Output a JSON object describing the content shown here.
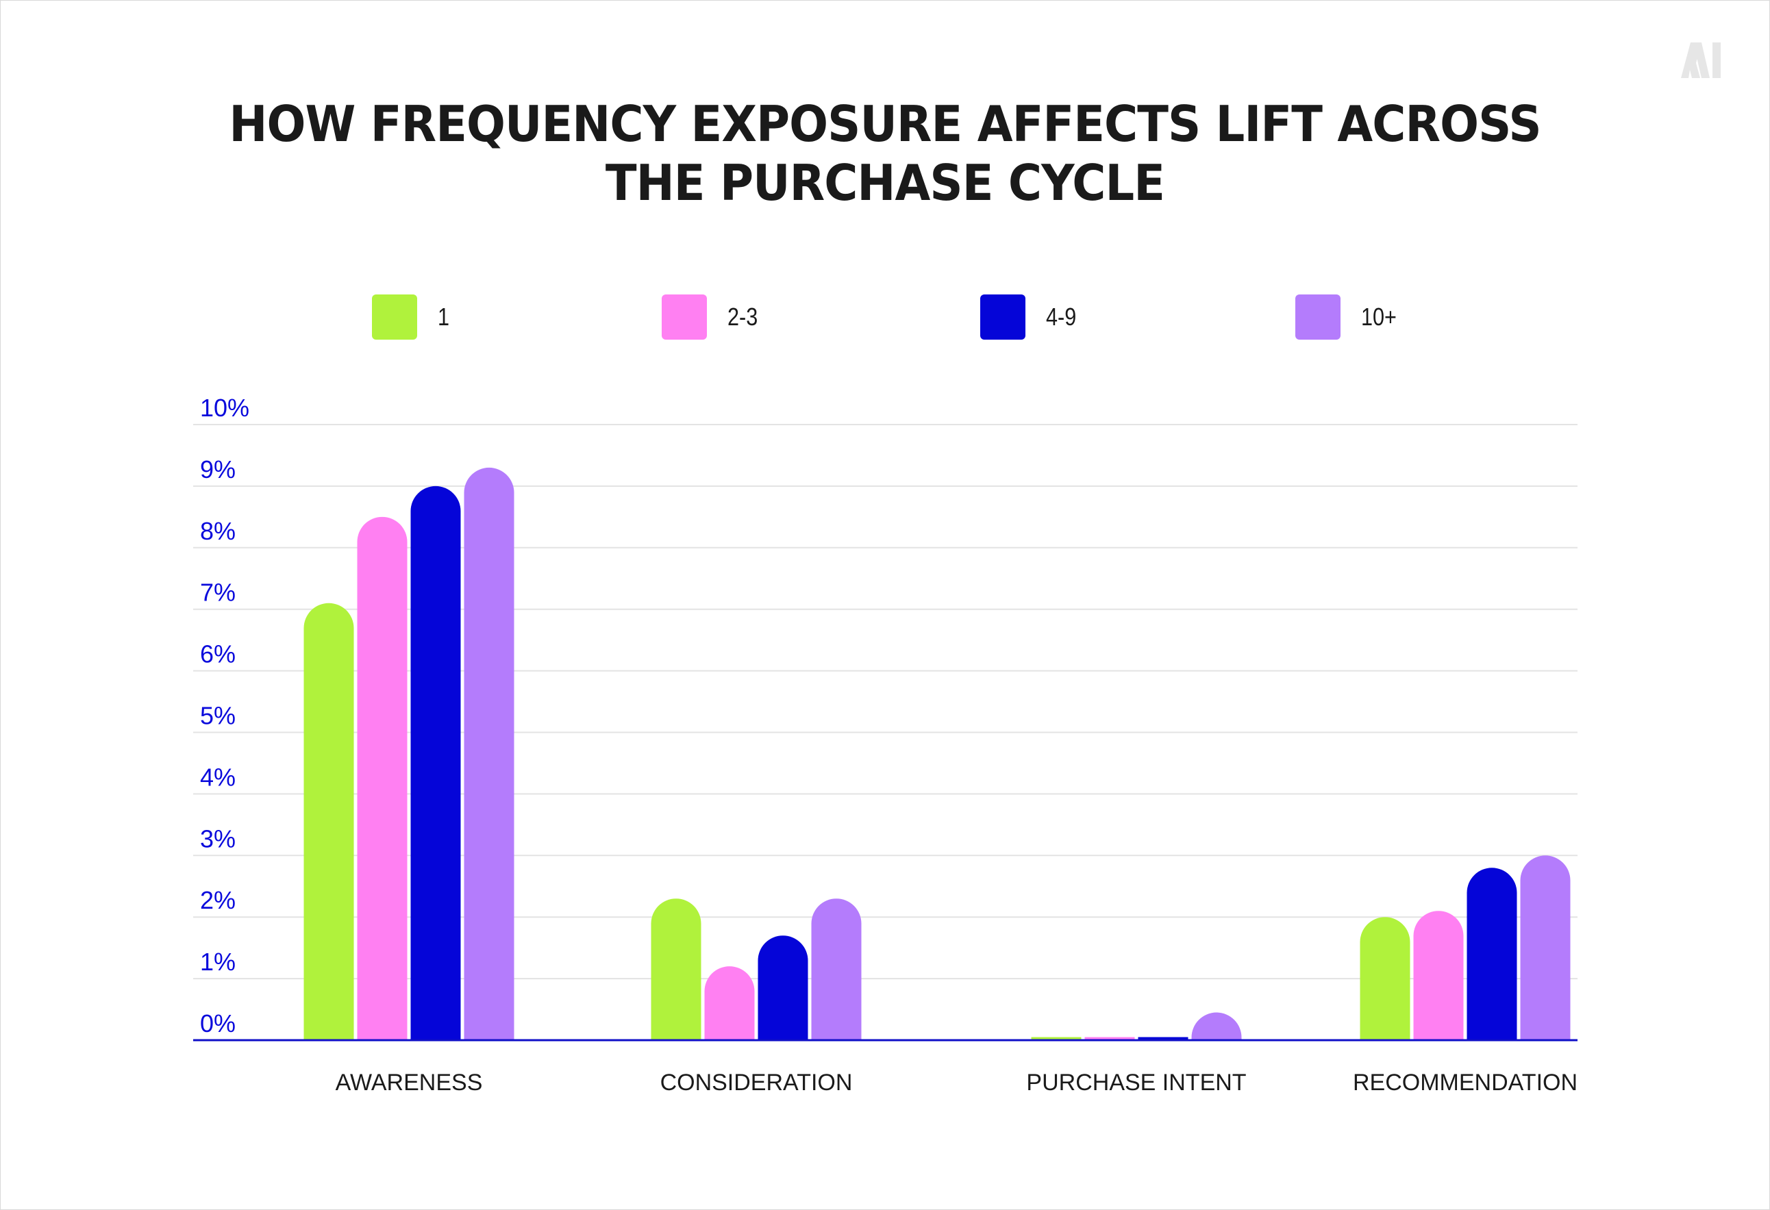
{
  "title_lines": [
    "HOW FREQUENCY EXPOSURE AFFECTS LIFT ACROSS",
    "THE PURCHASE CYCLE"
  ],
  "logo_text": "AI",
  "chart_data": {
    "type": "bar",
    "title": "HOW FREQUENCY EXPOSURE AFFECTS LIFT ACROSS THE PURCHASE CYCLE",
    "xlabel": "",
    "ylabel": "",
    "ylim": [
      0,
      10
    ],
    "y_ticks": [
      "0%",
      "1%",
      "2%",
      "3%",
      "4%",
      "5%",
      "6%",
      "7%",
      "8%",
      "9%",
      "10%"
    ],
    "grid": true,
    "legend_position": "top",
    "categories": [
      "AWARENESS",
      "CONSIDERATION",
      "PURCHASE INTENT",
      "RECOMMENDATION"
    ],
    "series": [
      {
        "name": "1",
        "color": "#b0f23c",
        "values": [
          7.1,
          2.3,
          0.05,
          2.0
        ]
      },
      {
        "name": "2-3",
        "color": "#ff80f2",
        "values": [
          8.5,
          1.2,
          0.05,
          2.1
        ]
      },
      {
        "name": "4-9",
        "color": "#0505d8",
        "values": [
          9.0,
          1.7,
          0.05,
          2.8
        ]
      },
      {
        "name": "10+",
        "color": "#b47cfc",
        "values": [
          9.3,
          2.3,
          0.45,
          3.0
        ]
      }
    ]
  }
}
